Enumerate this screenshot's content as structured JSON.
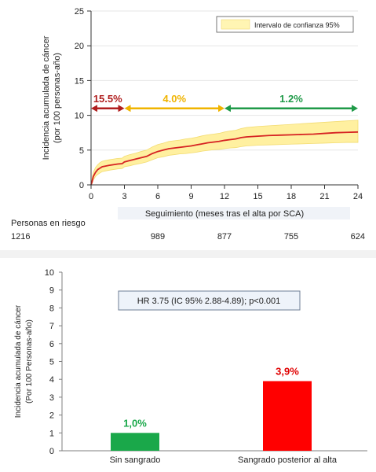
{
  "chart_data": [
    {
      "type": "line",
      "xlabel": "Seguimiento (meses tras el alta por SCA)",
      "ylabel_lines": [
        "Incidencia acumulada de cáncer",
        "(por 100 personas-año)"
      ],
      "xlim": [
        0,
        24
      ],
      "ylim": [
        0,
        25
      ],
      "xticks": [
        0,
        3,
        6,
        9,
        12,
        15,
        18,
        21,
        24
      ],
      "yticks": [
        0,
        5,
        10,
        15,
        20,
        25
      ],
      "legend": {
        "label": "Intervalo de confianza 95%",
        "placement": "top-right",
        "color": "#fff5b3"
      },
      "curve_color": "#d62222",
      "band_color": "#fff0a0",
      "series": [
        {
          "x": [
            0,
            0.1,
            0.2,
            0.4,
            0.6,
            0.8,
            1,
            1.3,
            1.6,
            2,
            2.4,
            2.8,
            3,
            3.5,
            4,
            4.5,
            5,
            5.5,
            6,
            6.5,
            7,
            7.5,
            8,
            8.5,
            9,
            9.5,
            10,
            10.5,
            11,
            11.5,
            12,
            12.5,
            13,
            13.5,
            14,
            15,
            16,
            17,
            18,
            19,
            20,
            21,
            22,
            23,
            24
          ],
          "y": [
            0,
            0.5,
            1.2,
            1.8,
            2.2,
            2.4,
            2.6,
            2.7,
            2.8,
            2.9,
            3.0,
            3.05,
            3.3,
            3.5,
            3.7,
            3.9,
            4.1,
            4.5,
            4.8,
            5.0,
            5.2,
            5.3,
            5.4,
            5.5,
            5.6,
            5.75,
            5.9,
            6.05,
            6.15,
            6.25,
            6.4,
            6.5,
            6.6,
            6.8,
            6.9,
            7.0,
            7.1,
            7.15,
            7.2,
            7.25,
            7.3,
            7.4,
            7.5,
            7.55,
            7.6
          ],
          "lower": [
            0,
            0.2,
            0.7,
            1.2,
            1.5,
            1.7,
            1.9,
            2.0,
            2.1,
            2.2,
            2.3,
            2.35,
            2.6,
            2.75,
            2.95,
            3.1,
            3.3,
            3.6,
            3.9,
            4.05,
            4.25,
            4.35,
            4.45,
            4.5,
            4.6,
            4.7,
            4.85,
            4.95,
            5.05,
            5.1,
            5.2,
            5.3,
            5.35,
            5.5,
            5.6,
            5.7,
            5.75,
            5.8,
            5.85,
            5.9,
            5.95,
            6.0,
            6.05,
            6.1,
            6.1
          ],
          "upper": [
            0,
            1.0,
            1.8,
            2.5,
            2.9,
            3.2,
            3.4,
            3.5,
            3.6,
            3.7,
            3.8,
            3.85,
            4.1,
            4.35,
            4.55,
            4.8,
            5.0,
            5.45,
            5.8,
            6.0,
            6.25,
            6.35,
            6.45,
            6.6,
            6.7,
            6.85,
            7.05,
            7.2,
            7.3,
            7.4,
            7.6,
            7.75,
            7.85,
            8.1,
            8.25,
            8.4,
            8.5,
            8.6,
            8.7,
            8.8,
            8.9,
            9.0,
            9.1,
            9.2,
            9.3
          ]
        }
      ],
      "annotations": [
        {
          "label": "15.5%",
          "x_start": 0,
          "x_end": 3,
          "y": 11,
          "color": "#b01e1e"
        },
        {
          "label": "4.0%",
          "x_start": 3,
          "x_end": 12,
          "y": 11,
          "color": "#f0b400"
        },
        {
          "label": "1.2%",
          "x_start": 12,
          "x_end": 24,
          "y": 11,
          "color": "#1f9a48"
        }
      ],
      "risk_table": {
        "title": "Personas en riesgo",
        "x": [
          0,
          6,
          12,
          18,
          24
        ],
        "values": [
          "1216",
          "989",
          "877",
          "755",
          "624"
        ]
      }
    },
    {
      "type": "bar",
      "ylabel_lines": [
        "Incidencia acumulada de cáncer",
        "(Por 100 Personas-año)"
      ],
      "ylim": [
        0,
        10
      ],
      "yticks": [
        0,
        1,
        2,
        3,
        4,
        5,
        6,
        7,
        8,
        9,
        10
      ],
      "categories": [
        "Sin sangrado",
        "Sangrado posterior al alta"
      ],
      "values": [
        1.0,
        3.9
      ],
      "value_labels": [
        "1,0%",
        "3,9%"
      ],
      "colors": [
        "#1aa84a",
        "#ff0000"
      ],
      "label_colors": [
        "#1aa84a",
        "#e00000"
      ],
      "annotation": "HR  3.75 (IC 95% 2.88-4.89); p<0.001"
    }
  ]
}
